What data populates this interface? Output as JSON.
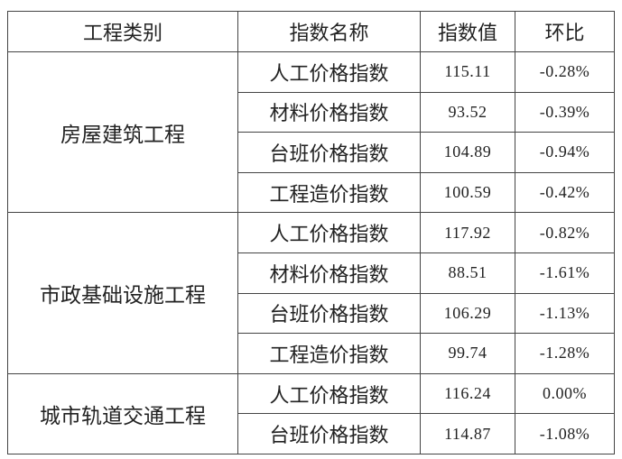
{
  "headers": {
    "category": "工程类别",
    "index_name": "指数名称",
    "index_value": "指数值",
    "mom": "环比"
  },
  "groups": [
    {
      "category": "房屋建筑工程",
      "rows": [
        {
          "name": "人工价格指数",
          "value": "115.11",
          "mom": "-0.28%"
        },
        {
          "name": "材料价格指数",
          "value": "93.52",
          "mom": "-0.39%"
        },
        {
          "name": "台班价格指数",
          "value": "104.89",
          "mom": "-0.94%"
        },
        {
          "name": "工程造价指数",
          "value": "100.59",
          "mom": "-0.42%"
        }
      ]
    },
    {
      "category": "市政基础设施工程",
      "rows": [
        {
          "name": "人工价格指数",
          "value": "117.92",
          "mom": "-0.82%"
        },
        {
          "name": "材料价格指数",
          "value": "88.51",
          "mom": "-1.61%"
        },
        {
          "name": "台班价格指数",
          "value": "106.29",
          "mom": "-1.13%"
        },
        {
          "name": "工程造价指数",
          "value": "99.74",
          "mom": "-1.28%"
        }
      ]
    },
    {
      "category": "城市轨道交通工程",
      "rows": [
        {
          "name": "人工价格指数",
          "value": "116.24",
          "mom": "0.00%"
        },
        {
          "name": "台班价格指数",
          "value": "114.87",
          "mom": "-1.08%"
        }
      ]
    }
  ]
}
